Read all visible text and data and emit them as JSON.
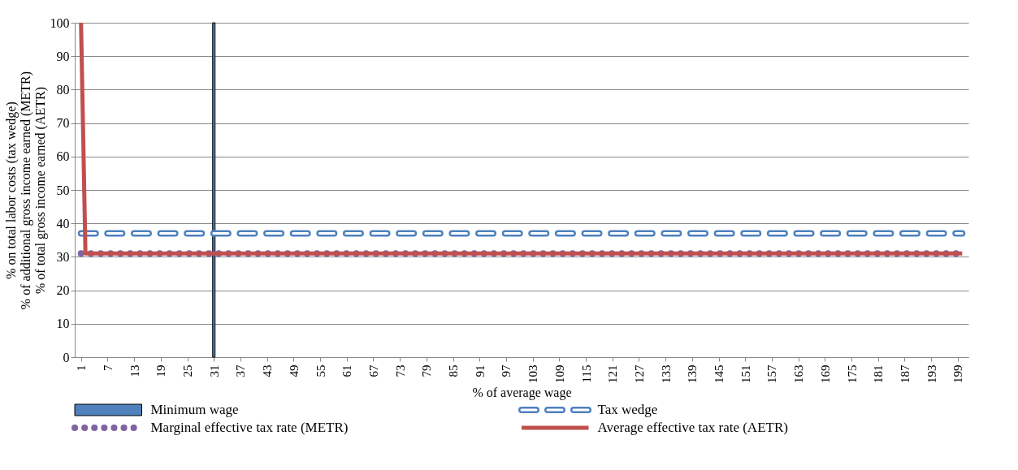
{
  "chart_data": {
    "type": "line",
    "xlabel": "% of average wage",
    "ylabel": "% on total labor costs (tax wedge)\n% of additional gross income earned (METR)\n% of total gross income earned (AETR)",
    "xlim": [
      0.5,
      200.5
    ],
    "xticks": [
      1,
      7,
      13,
      19,
      25,
      31,
      37,
      43,
      49,
      55,
      61,
      67,
      73,
      79,
      85,
      91,
      97,
      103,
      109,
      115,
      121,
      127,
      133,
      139,
      145,
      151,
      157,
      163,
      169,
      175,
      181,
      187,
      193,
      199
    ],
    "ylim": [
      0,
      100
    ],
    "yticks": [
      0,
      10,
      20,
      30,
      40,
      50,
      60,
      70,
      80,
      90,
      100
    ],
    "grid": "y",
    "legend": "bottom",
    "marker": "none",
    "series": [
      {
        "name": "Minimum wage",
        "type": "bar",
        "color": "#4f81bd",
        "x": [
          31
        ],
        "values": [
          100
        ]
      },
      {
        "name": "Tax wedge",
        "line_style": "dashed",
        "color": "#4f81bd",
        "x": [
          1,
          200
        ],
        "values": [
          37,
          37
        ]
      },
      {
        "name": "Marginal effective tax rate (METR)",
        "line_style": "dotted",
        "color": "#8064a2",
        "x": [
          1,
          200
        ],
        "values": [
          31,
          31
        ]
      },
      {
        "name": "Average effective tax rate (AETR)",
        "line_style": "solid",
        "color": "#c0504d",
        "x": [
          1,
          2,
          200
        ],
        "values": [
          100,
          31,
          31
        ]
      }
    ]
  }
}
